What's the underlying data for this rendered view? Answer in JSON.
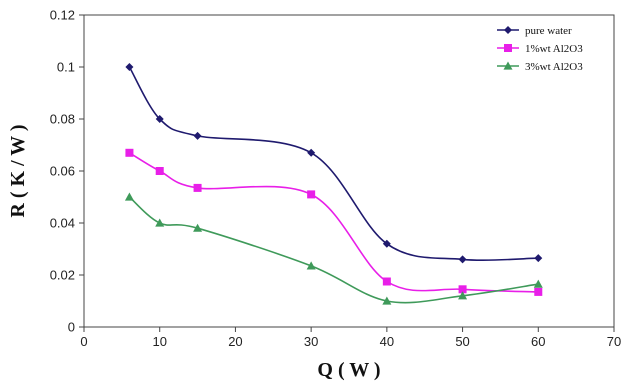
{
  "chart_data": {
    "type": "line",
    "title": "",
    "xlabel": "Q ( W )",
    "ylabel": "R ( K / W )",
    "xlim": [
      0,
      70
    ],
    "ylim": [
      0,
      0.12
    ],
    "x_ticks": [
      "0",
      "10",
      "20",
      "30",
      "40",
      "50",
      "60",
      "70"
    ],
    "y_ticks": [
      "0",
      "0.02",
      "0.04",
      "0.06",
      "0.08",
      "0.1",
      "0.12"
    ],
    "grid": false,
    "legend_position": "top-right",
    "x": [
      6,
      10,
      15,
      30,
      40,
      50,
      60
    ],
    "series": [
      {
        "name": "pure water",
        "color": "#1f1a6e",
        "marker": "diamond",
        "values": [
          0.1,
          0.08,
          0.0735,
          0.067,
          0.032,
          0.026,
          0.0265
        ]
      },
      {
        "name": "1%wt Al2O3",
        "color": "#e81fe8",
        "marker": "square",
        "values": [
          0.067,
          0.06,
          0.0535,
          0.051,
          0.0175,
          0.0145,
          0.0135
        ]
      },
      {
        "name": "3%wt Al2O3",
        "color": "#3f9a5a",
        "marker": "triangle",
        "values": [
          0.05,
          0.04,
          0.038,
          0.0235,
          0.01,
          0.012,
          0.0165
        ]
      }
    ]
  }
}
